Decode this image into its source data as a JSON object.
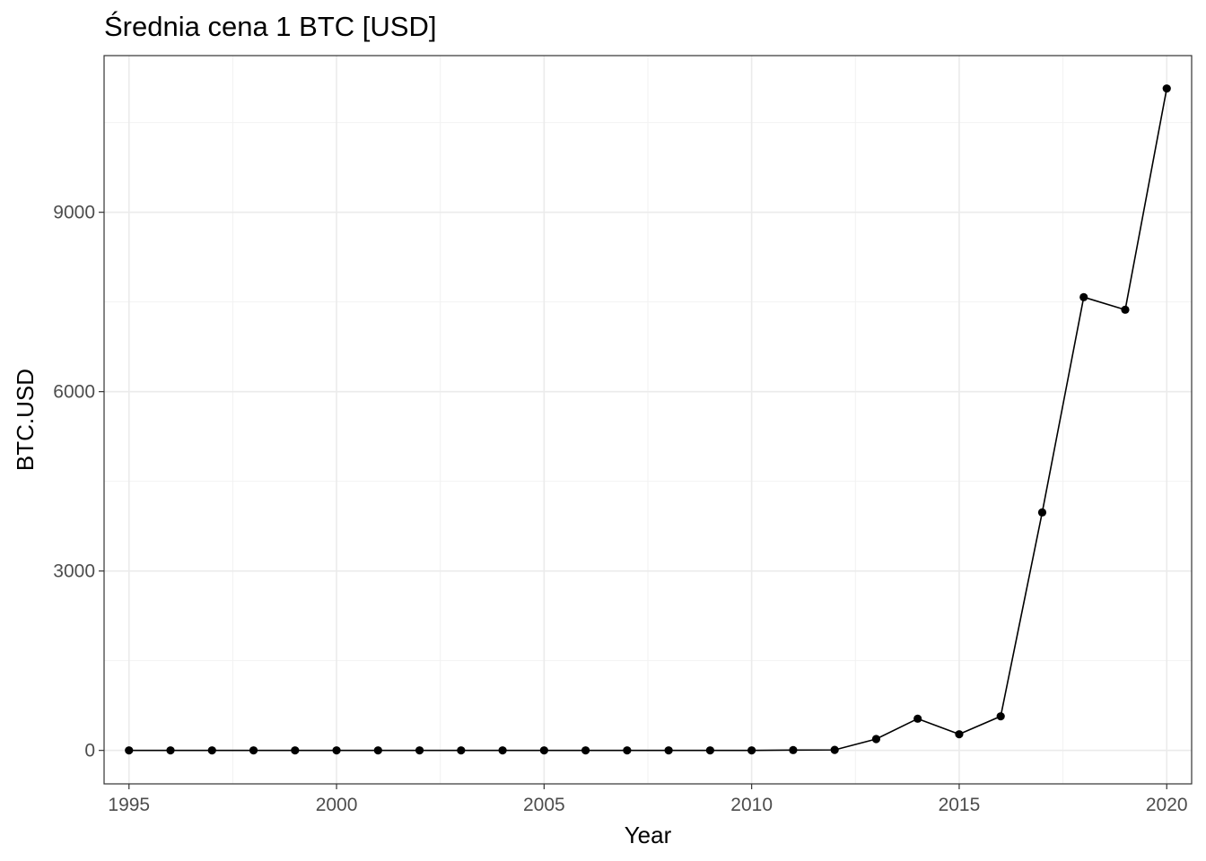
{
  "chart_data": {
    "type": "line",
    "title": "Średnia cena 1 BTC [USD]",
    "xlabel": "Year",
    "ylabel": "BTC.USD",
    "x": [
      1995,
      1996,
      1997,
      1998,
      1999,
      2000,
      2001,
      2002,
      2003,
      2004,
      2005,
      2006,
      2007,
      2008,
      2009,
      2010,
      2011,
      2012,
      2013,
      2014,
      2015,
      2016,
      2017,
      2018,
      2019,
      2020
    ],
    "series": [
      {
        "values": [
          0,
          0,
          0,
          0,
          0,
          0,
          0,
          0,
          0,
          0,
          0,
          0,
          0,
          0,
          0,
          0,
          5,
          8,
          190,
          530,
          270,
          570,
          3980,
          7580,
          7370,
          11070
        ]
      }
    ],
    "xlim": [
      1994.4,
      2020.6
    ],
    "ylim": [
      -560,
      11620
    ],
    "x_ticks": [
      1995,
      2000,
      2005,
      2010,
      2015,
      2020
    ],
    "x_tick_labels": [
      "1995",
      "2000",
      "2005",
      "2010",
      "2015",
      "2020"
    ],
    "y_ticks": [
      0,
      3000,
      6000,
      9000
    ],
    "y_tick_labels": [
      "0",
      "3000",
      "6000",
      "9000"
    ],
    "grid": true,
    "legend": "none",
    "colors": {
      "line": "#000000",
      "points": "#000000",
      "grid": "#ebebeb",
      "panel_border": "#333333"
    }
  }
}
